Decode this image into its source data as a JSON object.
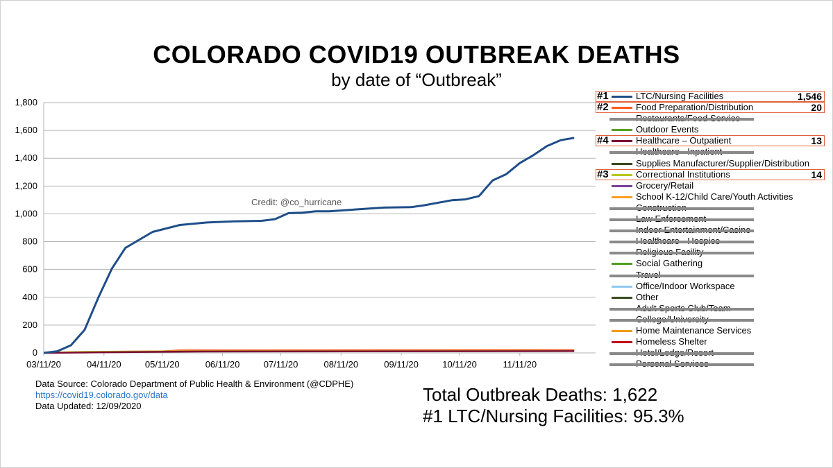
{
  "header": {
    "title": "COLORADO COVID19 OUTBREAK DEATHS",
    "subtitle": "by date of “Outbreak”"
  },
  "credit": "Credit: @co_hurricane",
  "legend": [
    {
      "rank": "#1",
      "label": "LTC/Nursing Facilities",
      "color": "#1f4e89",
      "value": "1,546",
      "highlighted": true,
      "struck": false
    },
    {
      "rank": "#2",
      "label": "Food Preparation/Distribution",
      "color": "#ff5a1f",
      "value": "20",
      "highlighted": true,
      "struck": false
    },
    {
      "rank": "",
      "label": "Restaurants/Food Service",
      "color": "#8a6d1a",
      "value": "",
      "highlighted": false,
      "struck": true
    },
    {
      "rank": "",
      "label": "Outdoor Events",
      "color": "#58a02c",
      "value": "",
      "highlighted": false,
      "struck": false
    },
    {
      "rank": "#4",
      "label": "Healthcare – Outpatient",
      "color": "#7b0b34",
      "value": "13",
      "highlighted": true,
      "struck": false
    },
    {
      "rank": "",
      "label": "Healthcare - Inpatient",
      "color": "#6e93c2",
      "value": "",
      "highlighted": false,
      "struck": true
    },
    {
      "rank": "",
      "label": "Supplies Manufacturer/Supplier/Distribution",
      "color": "#3c4a1e",
      "value": "",
      "highlighted": false,
      "struck": false
    },
    {
      "rank": "#3",
      "label": "Correctional Institutions",
      "color": "#b9c61f",
      "value": "14",
      "highlighted": true,
      "struck": false
    },
    {
      "rank": "",
      "label": "Grocery/Retail",
      "color": "#7a3f9a",
      "value": "",
      "highlighted": false,
      "struck": false
    },
    {
      "rank": "",
      "label": "School K-12/Child Care/Youth Activities",
      "color": "#ff9d1f",
      "value": "",
      "highlighted": false,
      "struck": false
    },
    {
      "rank": "",
      "label": "Construction",
      "color": "#7a1e1e",
      "value": "",
      "highlighted": false,
      "struck": true
    },
    {
      "rank": "",
      "label": "Law Enforcement",
      "color": "#1e5a7a",
      "value": "",
      "highlighted": false,
      "struck": true
    },
    {
      "rank": "",
      "label": "Indoor Entertainment/Casino",
      "color": "#0e2a4a",
      "value": "",
      "highlighted": false,
      "struck": true
    },
    {
      "rank": "",
      "label": "Healthcare - Hospice",
      "color": "#c0392b",
      "value": "",
      "highlighted": false,
      "struck": true
    },
    {
      "rank": "",
      "label": "Religious Facility",
      "color": "#8a7a1a",
      "value": "",
      "highlighted": false,
      "struck": true
    },
    {
      "rank": "",
      "label": "Social Gathering",
      "color": "#4f9e1f",
      "value": "",
      "highlighted": false,
      "struck": false
    },
    {
      "rank": "",
      "label": "Travel",
      "color": "#4a0a2a",
      "value": "",
      "highlighted": false,
      "struck": true
    },
    {
      "rank": "",
      "label": "Office/Indoor Workspace",
      "color": "#8fc9f0",
      "value": "",
      "highlighted": false,
      "struck": false
    },
    {
      "rank": "",
      "label": "Other",
      "color": "#3c4a1e",
      "value": "",
      "highlighted": false,
      "struck": false
    },
    {
      "rank": "",
      "label": "Adult Sports Club/Team",
      "color": "#6a7a2a",
      "value": "",
      "highlighted": false,
      "struck": true
    },
    {
      "rank": "",
      "label": "College/University",
      "color": "#2a0a4a",
      "value": "",
      "highlighted": false,
      "struck": true
    },
    {
      "rank": "",
      "label": "Home Maintenance Services",
      "color": "#f39c12",
      "value": "",
      "highlighted": false,
      "struck": false
    },
    {
      "rank": "",
      "label": "Homeless Shelter",
      "color": "#c0101a",
      "value": "",
      "highlighted": false,
      "struck": false
    },
    {
      "rank": "",
      "label": "Hotel/Lodge/Resort",
      "color": "#1e4a6a",
      "value": "",
      "highlighted": false,
      "struck": true
    },
    {
      "rank": "",
      "label": "Personal Services",
      "color": "#0e2a4a",
      "value": "",
      "highlighted": false,
      "struck": true
    }
  ],
  "source": {
    "line1": "Data Source:  Colorado Department of Public Health & Environment (@CDPHE)",
    "link": "https://covid19.colorado.gov/data",
    "line3": "Data Updated:  12/09/2020"
  },
  "totals": {
    "line1": "Total Outbreak Deaths:  1,622",
    "line2": "#1 LTC/Nursing Facilities: 95.3%"
  },
  "chart_data": {
    "type": "line",
    "title": "COLORADO COVID19 OUTBREAK DEATHS",
    "subtitle": "by date of “Outbreak”",
    "xlabel": "",
    "ylabel": "",
    "ylim": [
      0,
      1800
    ],
    "yticks": [
      "0",
      "200",
      "400",
      "600",
      "800",
      "1,000",
      "1,200",
      "1,400",
      "1,600",
      "1,800"
    ],
    "xticks": [
      "03/11/20",
      "04/11/20",
      "05/11/20",
      "06/11/20",
      "07/11/20",
      "08/11/20",
      "09/11/20",
      "10/11/20",
      "11/11/20"
    ],
    "grid": "horizontal",
    "series": [
      {
        "name": "LTC/Nursing Facilities",
        "color": "#1f4e89",
        "x": [
          "2020-03-11",
          "2020-03-18",
          "2020-03-25",
          "2020-04-01",
          "2020-04-08",
          "2020-04-15",
          "2020-04-22",
          "2020-05-06",
          "2020-05-20",
          "2020-06-03",
          "2020-06-17",
          "2020-07-01",
          "2020-07-08",
          "2020-07-15",
          "2020-07-22",
          "2020-07-29",
          "2020-08-05",
          "2020-08-19",
          "2020-09-02",
          "2020-09-16",
          "2020-09-23",
          "2020-10-07",
          "2020-10-14",
          "2020-10-21",
          "2020-10-28",
          "2020-11-04",
          "2020-11-11",
          "2020-11-18",
          "2020-11-25",
          "2020-12-02",
          "2020-12-09"
        ],
        "y": [
          0,
          12,
          55,
          165,
          395,
          605,
          755,
          870,
          920,
          938,
          946,
          950,
          962,
          1005,
          1008,
          1018,
          1018,
          1032,
          1045,
          1048,
          1062,
          1098,
          1104,
          1128,
          1240,
          1285,
          1365,
          1422,
          1488,
          1530,
          1546
        ]
      },
      {
        "name": "Food Preparation/Distribution",
        "color": "#ff5a1f",
        "x": [
          "2020-03-11",
          "2020-04-11",
          "2020-05-11",
          "2020-05-20",
          "2020-12-09"
        ],
        "y": [
          0,
          8,
          12,
          18,
          20
        ]
      },
      {
        "name": "Correctional Institutions",
        "color": "#b9c61f",
        "x": [
          "2020-03-11",
          "2020-04-01",
          "2020-05-01",
          "2020-06-01",
          "2020-12-09"
        ],
        "y": [
          0,
          8,
          10,
          12,
          14
        ]
      },
      {
        "name": "Healthcare – Outpatient",
        "color": "#7b0b34",
        "x": [
          "2020-03-11",
          "2020-04-15",
          "2020-06-01",
          "2020-12-09"
        ],
        "y": [
          0,
          5,
          10,
          13
        ]
      }
    ]
  }
}
